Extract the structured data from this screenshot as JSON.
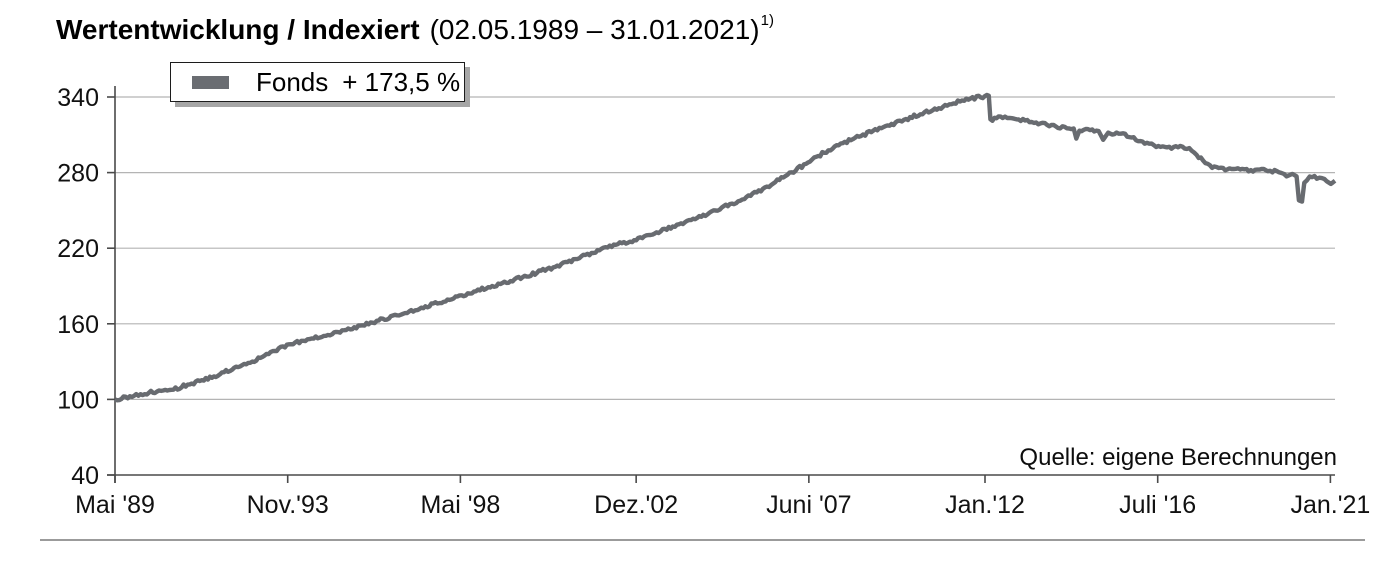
{
  "header": {
    "title_bold": "Wertentwicklung / Indexiert",
    "title_period": "(02.05.1989 – 31.01.2021)",
    "footnote_marker": "1)"
  },
  "legend": {
    "series_label": "Fonds",
    "series_value": "+ 173,5 %",
    "marker_color": "#6a6d72"
  },
  "source_note": "Quelle: eigene Berechnungen",
  "chart_data": {
    "type": "line",
    "title": "Wertentwicklung / Indexiert (02.05.1989 – 31.01.2021) 1)",
    "xlabel": "",
    "ylabel": "",
    "grid": "horizontal",
    "legend_position": "top-left",
    "line_color": "#686b70",
    "grid_color": "#b4b4b4",
    "axis_color": "#4a4a4a",
    "tick_label_color": "#111111",
    "ylim": [
      40,
      340
    ],
    "yticks": [
      40,
      100,
      160,
      220,
      280,
      340
    ],
    "xlim": [
      1989.37,
      2021.16
    ],
    "xticks": [
      {
        "t": 1989.37,
        "label": "Mai '89"
      },
      {
        "t": 1993.87,
        "label": "Nov.'93"
      },
      {
        "t": 1998.37,
        "label": "Mai '98"
      },
      {
        "t": 2002.95,
        "label": "Dez.'02"
      },
      {
        "t": 2007.45,
        "label": "Juni '07"
      },
      {
        "t": 2012.04,
        "label": "Jan.'12"
      },
      {
        "t": 2016.54,
        "label": "Juli '16"
      },
      {
        "t": 2021.04,
        "label": "Jan.'21"
      }
    ],
    "series": [
      {
        "name": "Fonds",
        "change_pct": "+ 173,5 %",
        "points": [
          [
            1989.37,
            100
          ],
          [
            1990.2,
            105
          ],
          [
            1991.0,
            109
          ],
          [
            1992.0,
            119
          ],
          [
            1993.0,
            131
          ],
          [
            1993.85,
            143
          ],
          [
            1994.6,
            149
          ],
          [
            1995.5,
            156
          ],
          [
            1996.4,
            164
          ],
          [
            1997.3,
            172
          ],
          [
            1998.35,
            182
          ],
          [
            1999.2,
            190
          ],
          [
            2000.1,
            198
          ],
          [
            2001.0,
            207
          ],
          [
            2002.1,
            220
          ],
          [
            2002.95,
            227
          ],
          [
            2003.8,
            236
          ],
          [
            2004.7,
            246
          ],
          [
            2005.5,
            256
          ],
          [
            2006.2,
            266
          ],
          [
            2007.0,
            280
          ],
          [
            2007.8,
            295
          ],
          [
            2008.6,
            307
          ],
          [
            2009.5,
            317
          ],
          [
            2010.3,
            326
          ],
          [
            2011.0,
            333
          ],
          [
            2011.5,
            338
          ],
          [
            2012.14,
            341
          ],
          [
            2012.18,
            322
          ],
          [
            2012.5,
            324
          ],
          [
            2012.8,
            322
          ],
          [
            2013.2,
            321
          ],
          [
            2013.6,
            318
          ],
          [
            2014.0,
            316
          ],
          [
            2014.35,
            315
          ],
          [
            2014.42,
            307
          ],
          [
            2014.5,
            314
          ],
          [
            2015.0,
            313
          ],
          [
            2015.12,
            306
          ],
          [
            2015.25,
            312
          ],
          [
            2015.8,
            309
          ],
          [
            2016.2,
            303
          ],
          [
            2016.5,
            301
          ],
          [
            2016.9,
            300
          ],
          [
            2017.3,
            300
          ],
          [
            2017.55,
            294
          ],
          [
            2017.9,
            285
          ],
          [
            2018.3,
            283
          ],
          [
            2018.8,
            282
          ],
          [
            2019.3,
            282
          ],
          [
            2019.7,
            281
          ],
          [
            2019.9,
            277
          ],
          [
            2020.05,
            279
          ],
          [
            2020.16,
            277
          ],
          [
            2020.22,
            258
          ],
          [
            2020.3,
            257
          ],
          [
            2020.36,
            272
          ],
          [
            2020.5,
            276
          ],
          [
            2020.75,
            276
          ],
          [
            2020.95,
            273
          ],
          [
            2021.05,
            271
          ],
          [
            2021.16,
            273.5
          ]
        ]
      }
    ]
  }
}
